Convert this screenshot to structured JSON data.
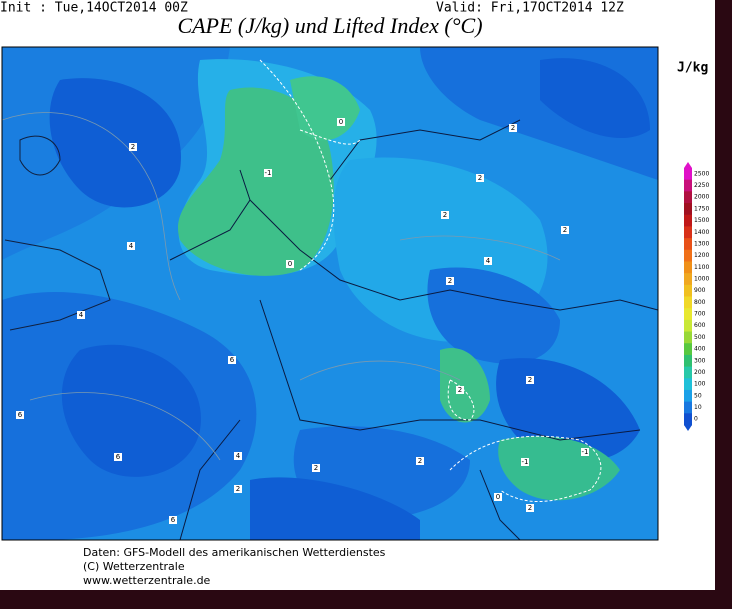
{
  "header": {
    "init": "Init : Tue,14OCT2014 00Z",
    "valid": "Valid: Fri,17OCT2014 12Z",
    "title": "CAPE (J/kg) und Lifted Index (°C)"
  },
  "legend": {
    "unit": "J/kg",
    "levels": [
      {
        "value": 2500,
        "color": "#e010c8"
      },
      {
        "value": 2250,
        "color": "#c8107a"
      },
      {
        "value": 2000,
        "color": "#b01040"
      },
      {
        "value": 1750,
        "color": "#a01020"
      },
      {
        "value": 1500,
        "color": "#c01818"
      },
      {
        "value": 1400,
        "color": "#d83018"
      },
      {
        "value": 1300,
        "color": "#e85018"
      },
      {
        "value": 1200,
        "color": "#f07018"
      },
      {
        "value": 1100,
        "color": "#f09018"
      },
      {
        "value": 1000,
        "color": "#f0a820"
      },
      {
        "value": 900,
        "color": "#f0c020"
      },
      {
        "value": 800,
        "color": "#f0d828"
      },
      {
        "value": 700,
        "color": "#e8e830"
      },
      {
        "value": 600,
        "color": "#c8e838"
      },
      {
        "value": 500,
        "color": "#98d838"
      },
      {
        "value": 400,
        "color": "#58c840"
      },
      {
        "value": 300,
        "color": "#30c070"
      },
      {
        "value": 200,
        "color": "#28c8a8"
      },
      {
        "value": 100,
        "color": "#20c0d8"
      },
      {
        "value": 50,
        "color": "#1aa0e8"
      },
      {
        "value": 10,
        "color": "#1878e0"
      },
      {
        "value": 0,
        "color": "#1050d0"
      }
    ]
  },
  "contour_labels": [
    2,
    -1,
    0,
    0,
    2,
    2,
    2,
    2,
    4,
    4,
    2,
    4,
    6,
    2,
    2,
    6,
    4,
    2,
    2,
    6,
    -1,
    -1,
    2,
    0,
    2,
    6
  ],
  "footer": [
    "Daten: GFS-Modell des amerikanischen Wetterdienstes",
    "(C) Wetterzentrale",
    "www.wetterzentrale.de"
  ]
}
